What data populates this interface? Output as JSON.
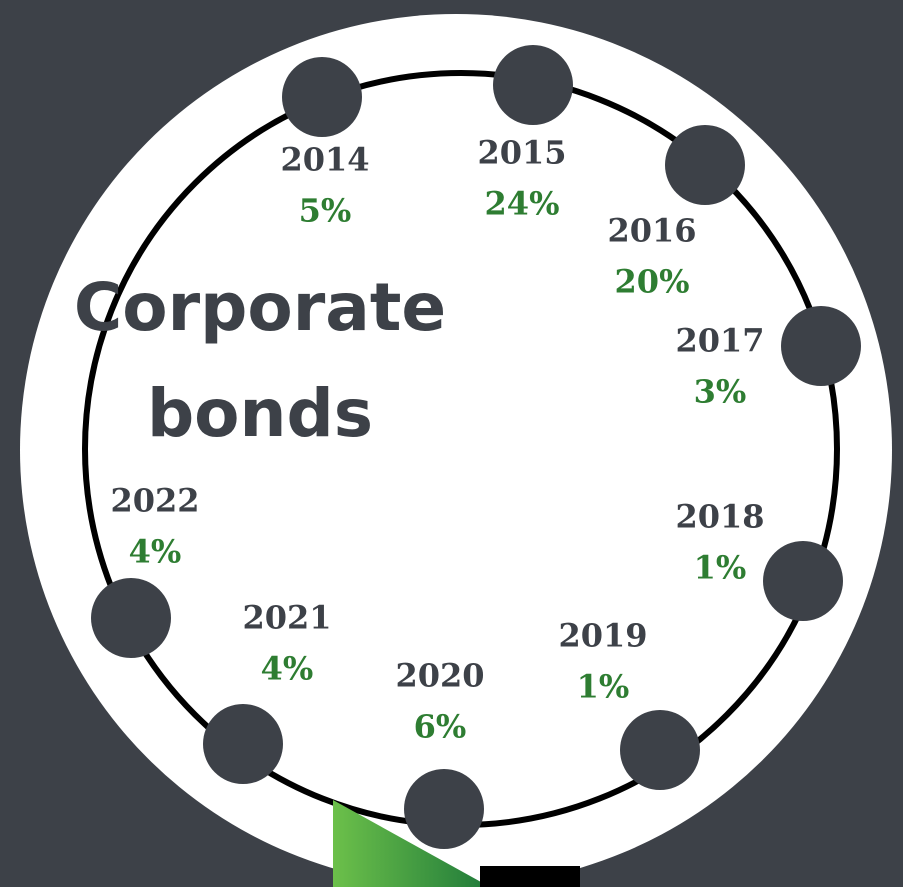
{
  "title": {
    "line1": "Corporate",
    "line2": "bonds"
  },
  "items": [
    {
      "year": "2014",
      "share": "5%"
    },
    {
      "year": "2015",
      "share": "24%"
    },
    {
      "year": "2016",
      "share": "20%"
    },
    {
      "year": "2017",
      "share": "3%"
    },
    {
      "year": "2018",
      "share": "1%"
    },
    {
      "year": "2019",
      "share": "1%"
    },
    {
      "year": "2020",
      "share": "6%"
    },
    {
      "year": "2021",
      "share": "4%"
    },
    {
      "year": "2022",
      "share": "4%"
    }
  ]
}
